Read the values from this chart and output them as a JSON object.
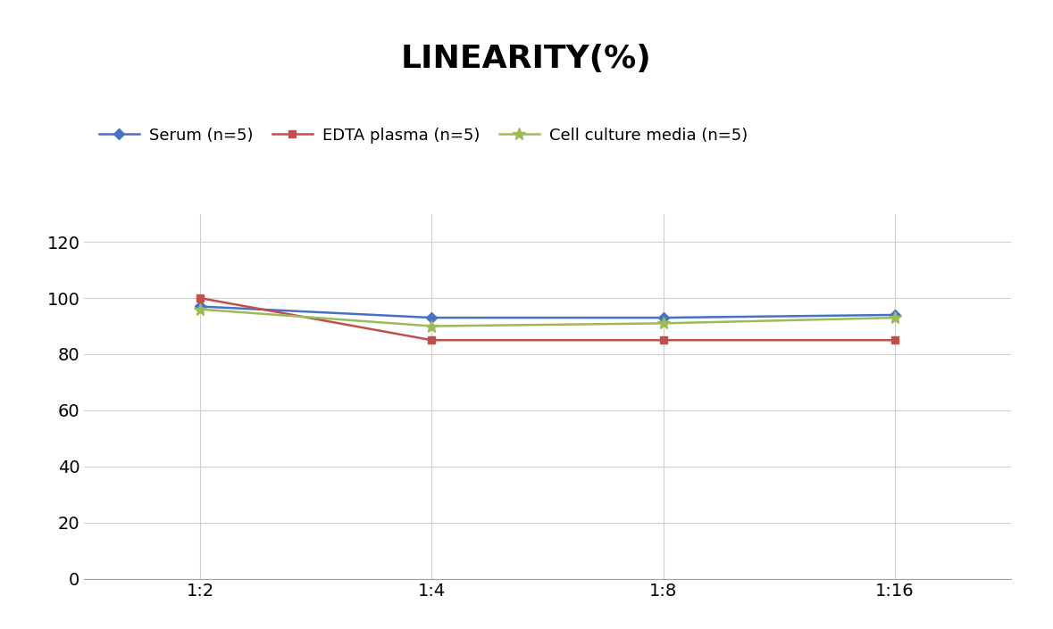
{
  "title": "LINEARITY(%)",
  "x_labels": [
    "1:2",
    "1:4",
    "1:8",
    "1:16"
  ],
  "x_positions": [
    0,
    1,
    2,
    3
  ],
  "series": [
    {
      "label": "Serum (n=5)",
      "values": [
        97,
        93,
        93,
        94
      ],
      "color": "#4472C4",
      "marker": "D",
      "marker_size": 6,
      "linewidth": 1.8
    },
    {
      "label": "EDTA plasma (n=5)",
      "values": [
        100,
        85,
        85,
        85
      ],
      "color": "#C0504D",
      "marker": "s",
      "marker_size": 6,
      "linewidth": 1.8
    },
    {
      "label": "Cell culture media (n=5)",
      "values": [
        96,
        90,
        91,
        93
      ],
      "color": "#9BBB59",
      "marker": "*",
      "marker_size": 10,
      "linewidth": 1.8
    }
  ],
  "ylim": [
    0,
    130
  ],
  "yticks": [
    0,
    20,
    40,
    60,
    80,
    100,
    120
  ],
  "background_color": "#ffffff",
  "title_fontsize": 26,
  "legend_fontsize": 13,
  "tick_fontsize": 14,
  "grid_color": "#d0d0d0",
  "grid_linewidth": 0.8
}
